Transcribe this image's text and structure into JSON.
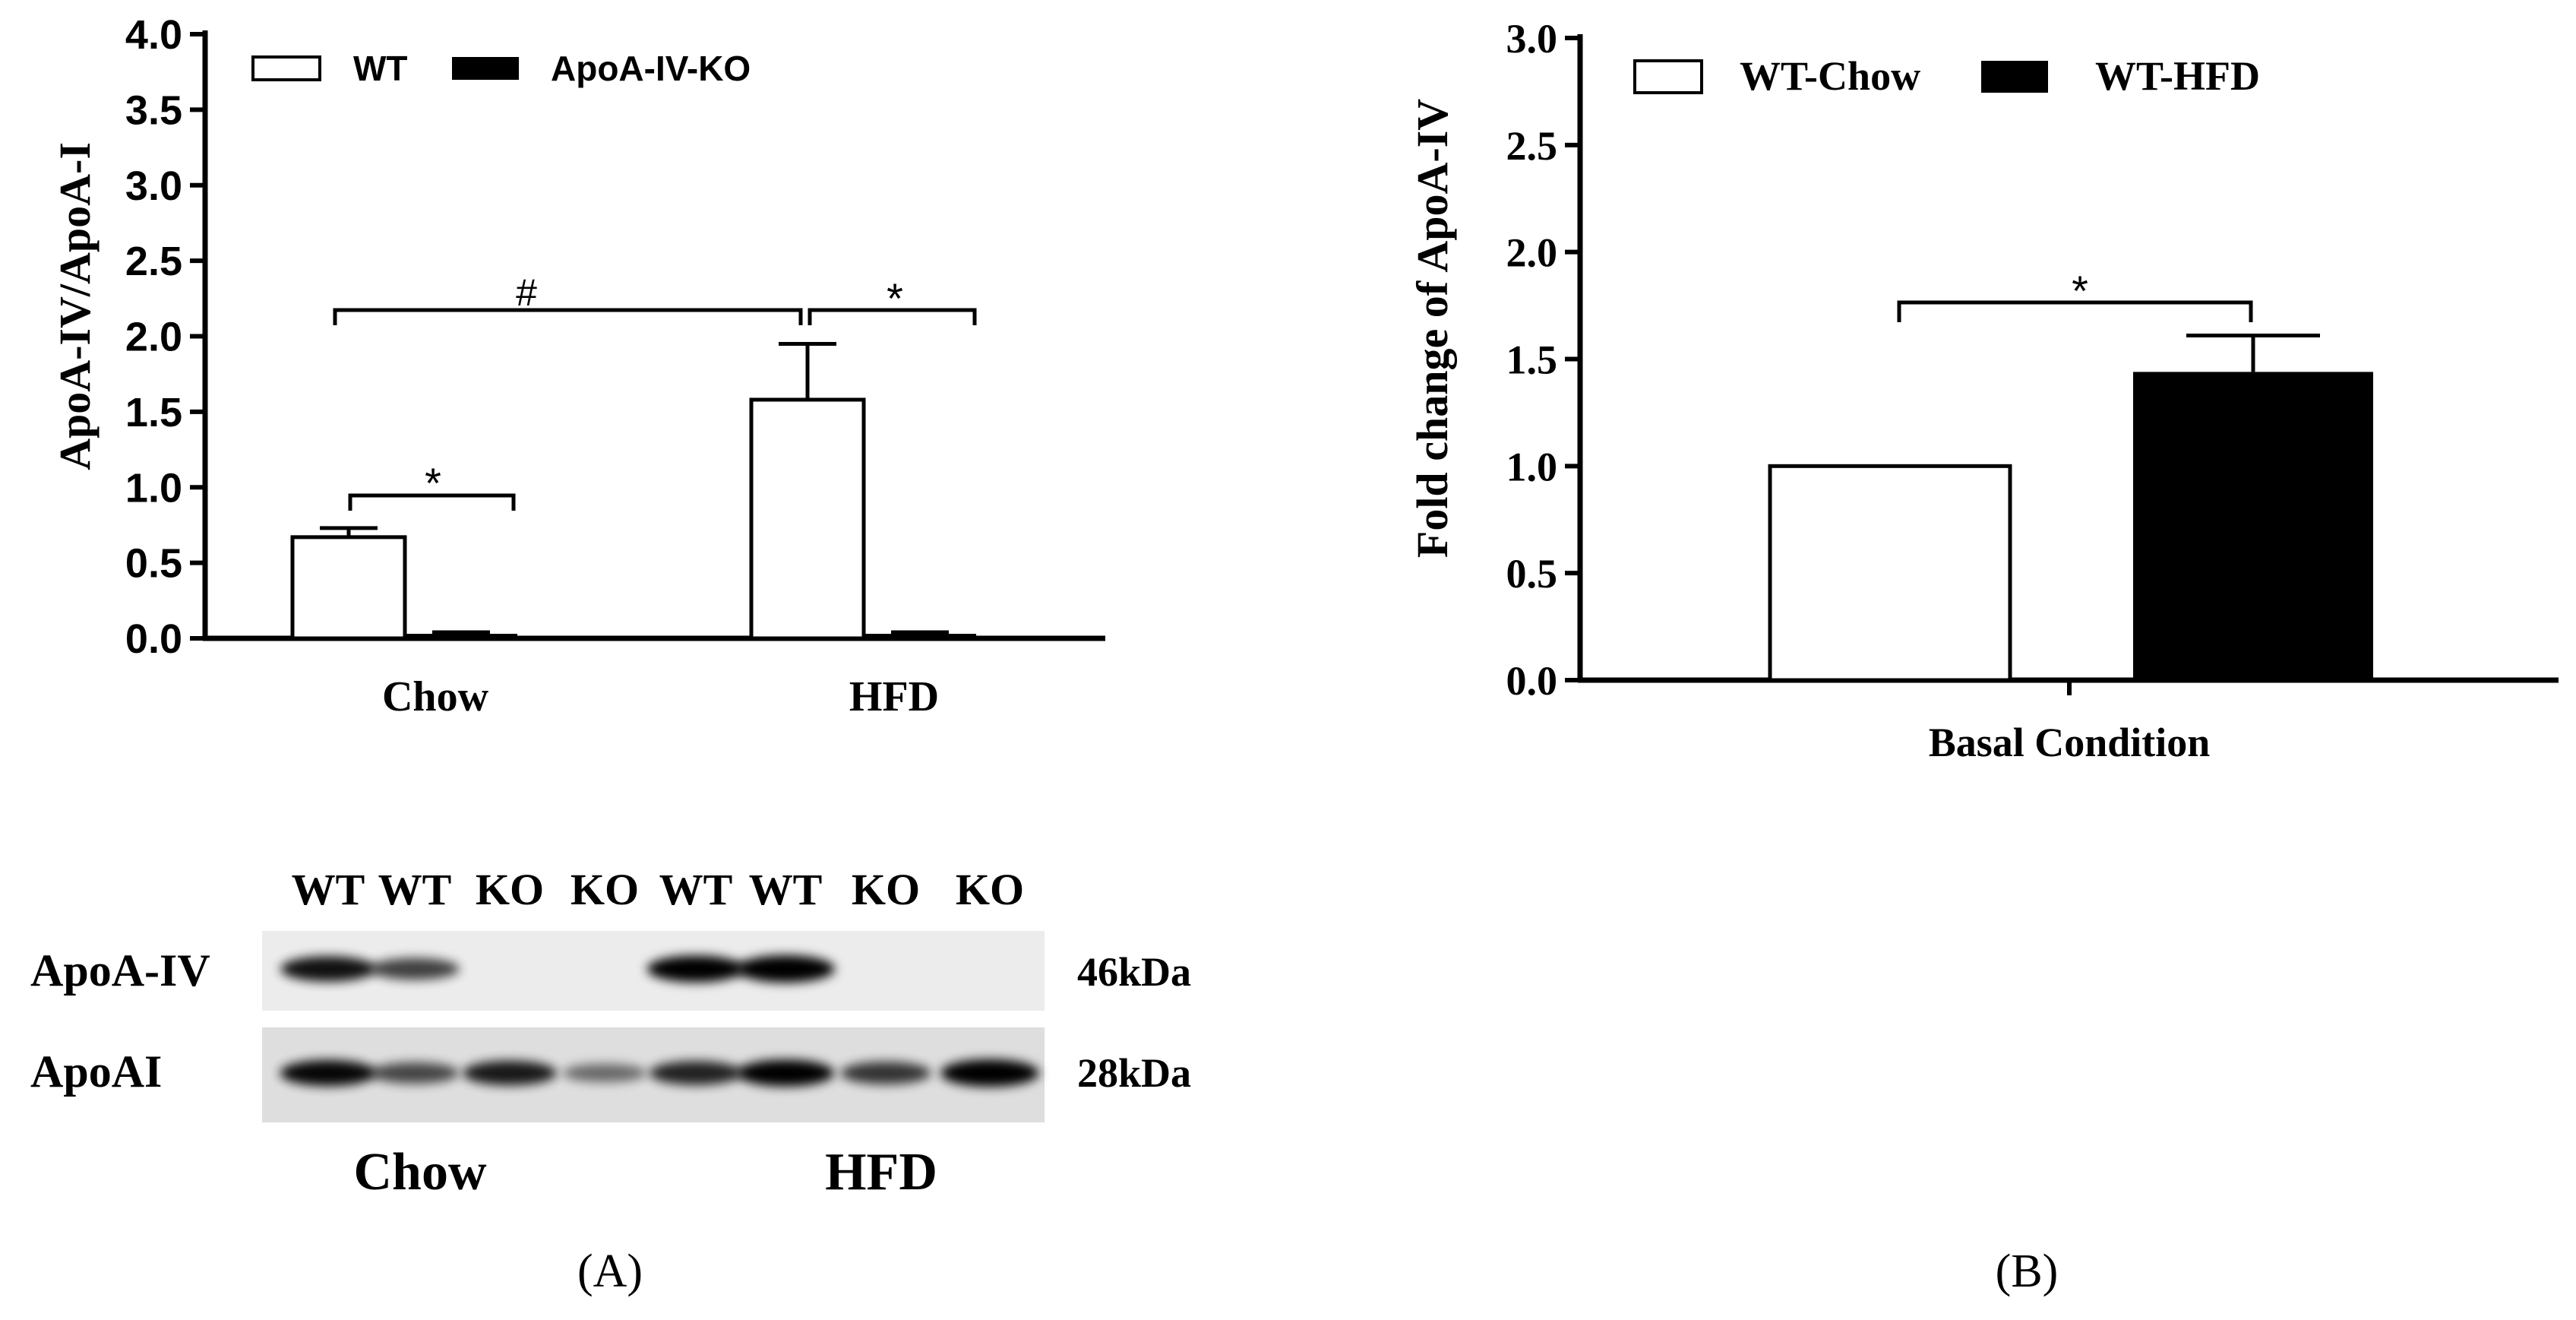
{
  "panel_labels": {
    "a": "(A)",
    "b": "(B)"
  },
  "chart_data": [
    {
      "type": "bar",
      "ylabel": "ApoA-IV/ApoA-I",
      "xlabel": "",
      "ylim": [
        0,
        4.0
      ],
      "ytick_labels": [
        "0.0",
        "0.5",
        "1.0",
        "1.5",
        "2.0",
        "2.5",
        "3.0",
        "3.5",
        "4.0"
      ],
      "categories": [
        "Chow",
        "HFD"
      ],
      "legend_position": "top-left",
      "series": [
        {
          "name": "WT",
          "values": [
            0.67,
            1.58
          ],
          "errors": [
            0.06,
            0.37
          ],
          "color": "#ffffff"
        },
        {
          "name": "ApoA-IV-KO",
          "values": [
            0.03,
            0.03
          ],
          "errors": [
            0.01,
            0.01
          ],
          "color": "#000000"
        }
      ],
      "annotations": [
        {
          "label": "*",
          "between": "Chow WT vs Chow ApoA-IV-KO"
        },
        {
          "label": "*",
          "between": "HFD WT vs HFD ApoA-IV-KO"
        },
        {
          "label": "#",
          "between": "Chow WT vs HFD WT"
        }
      ]
    },
    {
      "type": "bar",
      "ylabel": "Fold change of ApoA-IV",
      "xlabel": "Basal Condition",
      "ylim": [
        0,
        3.0
      ],
      "ytick_labels": [
        "0.0",
        "0.5",
        "1.0",
        "1.5",
        "2.0",
        "2.5",
        "3.0"
      ],
      "categories": [
        "Basal Condition"
      ],
      "legend_position": "top-left",
      "series": [
        {
          "name": "WT-Chow",
          "values": [
            1.0
          ],
          "errors": [
            0
          ],
          "color": "#ffffff"
        },
        {
          "name": "WT-HFD",
          "values": [
            1.44
          ],
          "errors": [
            0.17
          ],
          "color": "#000000"
        }
      ],
      "annotations": [
        {
          "label": "*",
          "between": "WT-Chow vs WT-HFD"
        }
      ]
    }
  ],
  "blot": {
    "lane_labels": [
      "WT",
      "WT",
      "KO",
      "KO",
      "WT",
      "WT",
      "KO",
      "KO"
    ],
    "rows": [
      {
        "label": "ApoA-IV",
        "size": "46kDa",
        "intensities": [
          0.85,
          0.6,
          0,
          0,
          0.95,
          1.0,
          0,
          0
        ]
      },
      {
        "label": "ApoAI",
        "size": "28kDa",
        "intensities": [
          0.9,
          0.55,
          0.8,
          0.35,
          0.75,
          0.95,
          0.65,
          1.0
        ]
      }
    ],
    "group_labels": [
      "Chow",
      "HFD"
    ]
  }
}
